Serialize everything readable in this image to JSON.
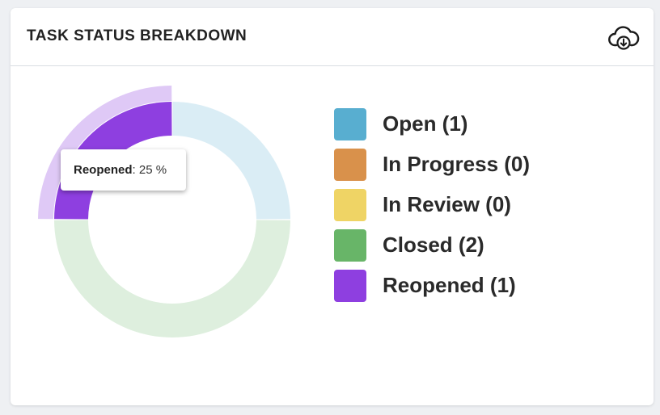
{
  "card": {
    "title": "TASK STATUS BREAKDOWN",
    "download_icon": "cloud-download-icon"
  },
  "chart_data": {
    "type": "pie",
    "donut": true,
    "categories": [
      "Open",
      "In Progress",
      "In Review",
      "Closed",
      "Reopened"
    ],
    "values": [
      1,
      0,
      0,
      2,
      1
    ],
    "colors": [
      "#58aed0",
      "#d9914b",
      "#efd465",
      "#68b568",
      "#8e3fe0"
    ],
    "legend_position": "right",
    "highlighted": "Reopened",
    "tooltip": {
      "label": "Reopened",
      "value": ": 25 %"
    }
  },
  "legend": [
    {
      "label": "Open (1)",
      "color": "#58aed0"
    },
    {
      "label": "In Progress (0)",
      "color": "#d9914b"
    },
    {
      "label": "In Review (0)",
      "color": "#efd465"
    },
    {
      "label": "Closed (2)",
      "color": "#68b568"
    },
    {
      "label": "Reopened (1)",
      "color": "#8e3fe0"
    }
  ]
}
